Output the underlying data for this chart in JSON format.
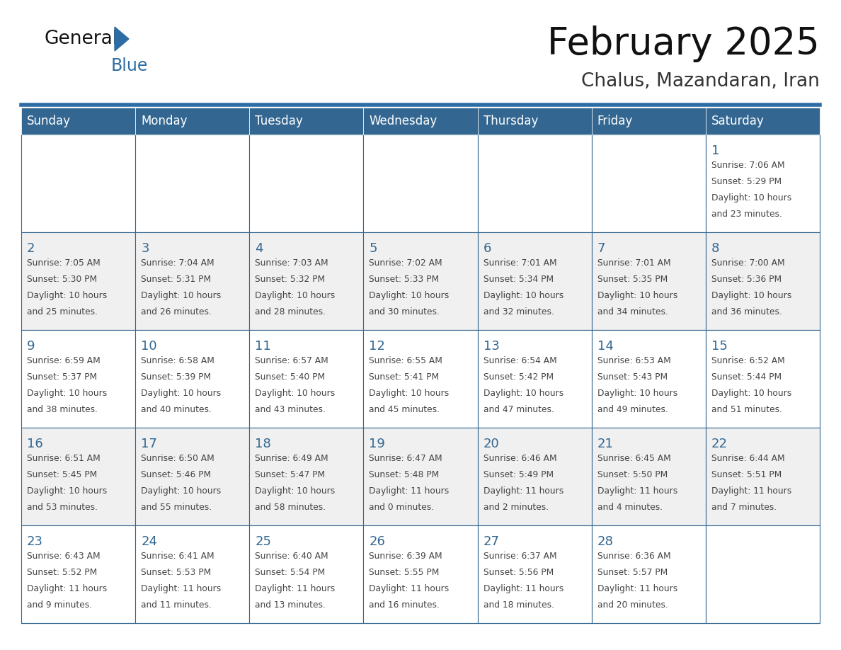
{
  "title": "February 2025",
  "subtitle": "Chalus, Mazandaran, Iran",
  "days_of_week": [
    "Sunday",
    "Monday",
    "Tuesday",
    "Wednesday",
    "Thursday",
    "Friday",
    "Saturday"
  ],
  "header_bg": "#336791",
  "header_text": "#FFFFFF",
  "cell_bg_light": "#FFFFFF",
  "cell_bg_dark": "#F0F0F0",
  "cell_border": "#336791",
  "day_num_color": "#336791",
  "info_color": "#444444",
  "bg_color": "#FFFFFF",
  "title_color": "#111111",
  "subtitle_color": "#333333",
  "logo_general_color": "#111111",
  "logo_blue_color": "#2E6DA4",
  "logo_triangle_color": "#2E6DA4",
  "header_blue": "#2E6DA4",
  "calendar": [
    [
      null,
      null,
      null,
      null,
      null,
      null,
      {
        "day": 1,
        "sunrise": "7:06 AM",
        "sunset": "5:29 PM",
        "daylight": "10 hours and 23 minutes."
      }
    ],
    [
      {
        "day": 2,
        "sunrise": "7:05 AM",
        "sunset": "5:30 PM",
        "daylight": "10 hours and 25 minutes."
      },
      {
        "day": 3,
        "sunrise": "7:04 AM",
        "sunset": "5:31 PM",
        "daylight": "10 hours and 26 minutes."
      },
      {
        "day": 4,
        "sunrise": "7:03 AM",
        "sunset": "5:32 PM",
        "daylight": "10 hours and 28 minutes."
      },
      {
        "day": 5,
        "sunrise": "7:02 AM",
        "sunset": "5:33 PM",
        "daylight": "10 hours and 30 minutes."
      },
      {
        "day": 6,
        "sunrise": "7:01 AM",
        "sunset": "5:34 PM",
        "daylight": "10 hours and 32 minutes."
      },
      {
        "day": 7,
        "sunrise": "7:01 AM",
        "sunset": "5:35 PM",
        "daylight": "10 hours and 34 minutes."
      },
      {
        "day": 8,
        "sunrise": "7:00 AM",
        "sunset": "5:36 PM",
        "daylight": "10 hours and 36 minutes."
      }
    ],
    [
      {
        "day": 9,
        "sunrise": "6:59 AM",
        "sunset": "5:37 PM",
        "daylight": "10 hours and 38 minutes."
      },
      {
        "day": 10,
        "sunrise": "6:58 AM",
        "sunset": "5:39 PM",
        "daylight": "10 hours and 40 minutes."
      },
      {
        "day": 11,
        "sunrise": "6:57 AM",
        "sunset": "5:40 PM",
        "daylight": "10 hours and 43 minutes."
      },
      {
        "day": 12,
        "sunrise": "6:55 AM",
        "sunset": "5:41 PM",
        "daylight": "10 hours and 45 minutes."
      },
      {
        "day": 13,
        "sunrise": "6:54 AM",
        "sunset": "5:42 PM",
        "daylight": "10 hours and 47 minutes."
      },
      {
        "day": 14,
        "sunrise": "6:53 AM",
        "sunset": "5:43 PM",
        "daylight": "10 hours and 49 minutes."
      },
      {
        "day": 15,
        "sunrise": "6:52 AM",
        "sunset": "5:44 PM",
        "daylight": "10 hours and 51 minutes."
      }
    ],
    [
      {
        "day": 16,
        "sunrise": "6:51 AM",
        "sunset": "5:45 PM",
        "daylight": "10 hours and 53 minutes."
      },
      {
        "day": 17,
        "sunrise": "6:50 AM",
        "sunset": "5:46 PM",
        "daylight": "10 hours and 55 minutes."
      },
      {
        "day": 18,
        "sunrise": "6:49 AM",
        "sunset": "5:47 PM",
        "daylight": "10 hours and 58 minutes."
      },
      {
        "day": 19,
        "sunrise": "6:47 AM",
        "sunset": "5:48 PM",
        "daylight": "11 hours and 0 minutes."
      },
      {
        "day": 20,
        "sunrise": "6:46 AM",
        "sunset": "5:49 PM",
        "daylight": "11 hours and 2 minutes."
      },
      {
        "day": 21,
        "sunrise": "6:45 AM",
        "sunset": "5:50 PM",
        "daylight": "11 hours and 4 minutes."
      },
      {
        "day": 22,
        "sunrise": "6:44 AM",
        "sunset": "5:51 PM",
        "daylight": "11 hours and 7 minutes."
      }
    ],
    [
      {
        "day": 23,
        "sunrise": "6:43 AM",
        "sunset": "5:52 PM",
        "daylight": "11 hours and 9 minutes."
      },
      {
        "day": 24,
        "sunrise": "6:41 AM",
        "sunset": "5:53 PM",
        "daylight": "11 hours and 11 minutes."
      },
      {
        "day": 25,
        "sunrise": "6:40 AM",
        "sunset": "5:54 PM",
        "daylight": "11 hours and 13 minutes."
      },
      {
        "day": 26,
        "sunrise": "6:39 AM",
        "sunset": "5:55 PM",
        "daylight": "11 hours and 16 minutes."
      },
      {
        "day": 27,
        "sunrise": "6:37 AM",
        "sunset": "5:56 PM",
        "daylight": "11 hours and 18 minutes."
      },
      {
        "day": 28,
        "sunrise": "6:36 AM",
        "sunset": "5:57 PM",
        "daylight": "11 hours and 20 minutes."
      },
      null
    ]
  ]
}
